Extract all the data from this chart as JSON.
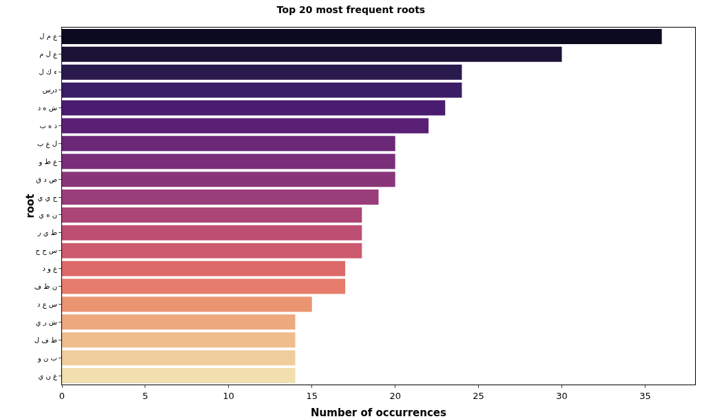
{
  "chart_data": {
    "type": "bar",
    "orientation": "horizontal",
    "title": "Top 20 most frequent roots",
    "xlabel": "Number of occurrences",
    "ylabel": "root",
    "categories": [
      "ع م ل",
      "ع ل م",
      "ء ك ل",
      "درس",
      "ش ه د",
      "ذ ه ب",
      "ل ع ب",
      "ع ط و",
      "ص د ق",
      "ح ي ي",
      "ن ه ي",
      "ط ي ر",
      "س ح ح",
      "ع و د",
      "ن ظ ف",
      "س ع د",
      "ش ر ي",
      "ط ف ل",
      "ب ن و",
      "غ ن ي"
    ],
    "values": [
      36,
      30,
      24,
      24,
      23,
      22,
      20,
      20,
      20,
      19,
      18,
      18,
      18,
      17,
      17,
      15,
      14,
      14,
      14,
      14
    ],
    "colors": [
      "#0c0a1f",
      "#1c1236",
      "#2a1a4e",
      "#3a1d66",
      "#4a1c70",
      "#5a2076",
      "#6a2877",
      "#7a2e7a",
      "#893679",
      "#9a3d7b",
      "#ab4676",
      "#bc4f71",
      "#cc5a6e",
      "#dc6a6a",
      "#e67c6b",
      "#eb9472",
      "#eda97e",
      "#efbc8c",
      "#f0cd9c",
      "#f2dfae"
    ],
    "xlim": [
      0,
      38
    ],
    "xticks": [
      0,
      5,
      10,
      15,
      20,
      25,
      30,
      35
    ],
    "grid": false
  }
}
